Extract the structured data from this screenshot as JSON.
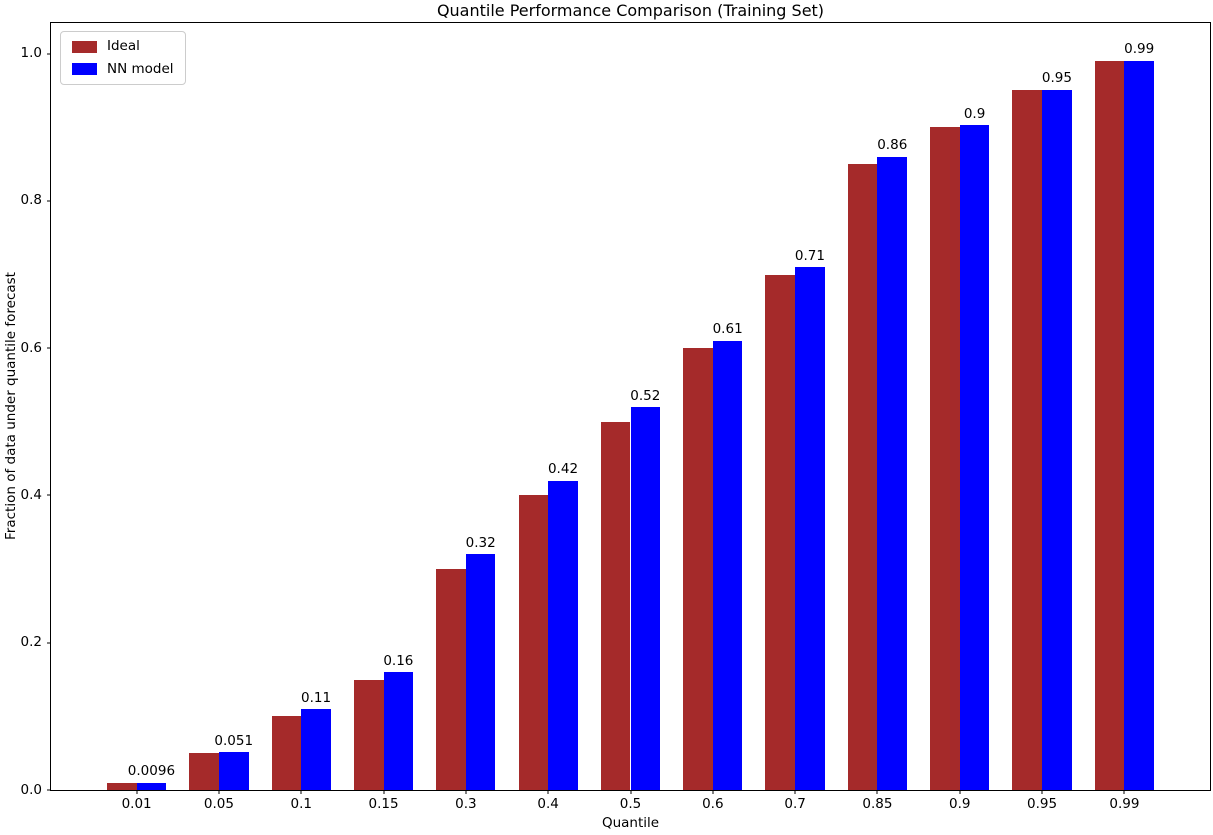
{
  "chart_data": {
    "type": "bar",
    "title": "Quantile Performance Comparison (Training Set)",
    "xlabel": "Quantile",
    "ylabel": "Fraction of data under quantile forecast",
    "categories": [
      "0.01",
      "0.05",
      "0.1",
      "0.15",
      "0.3",
      "0.4",
      "0.5",
      "0.6",
      "0.7",
      "0.85",
      "0.9",
      "0.95",
      "0.99"
    ],
    "series": [
      {
        "name": "Ideal",
        "color": "#A52A2A",
        "values": [
          0.01,
          0.05,
          0.1,
          0.15,
          0.3,
          0.4,
          0.5,
          0.6,
          0.7,
          0.85,
          0.9,
          0.95,
          0.99
        ]
      },
      {
        "name": "NN model",
        "color": "#0000FF",
        "values": [
          0.0096,
          0.051,
          0.11,
          0.16,
          0.32,
          0.42,
          0.52,
          0.61,
          0.71,
          0.86,
          0.903,
          0.951,
          0.99
        ]
      }
    ],
    "bar_labels": [
      "0.0096",
      "0.051",
      "0.11",
      "0.16",
      "0.32",
      "0.42",
      "0.52",
      "0.61",
      "0.71",
      "0.86",
      "0.9",
      "0.95",
      "0.99"
    ],
    "yticks": [
      "0.0",
      "0.2",
      "0.4",
      "0.6",
      "0.8",
      "1.0"
    ],
    "ylim": [
      0,
      1.0415
    ],
    "xlim": [
      -1.04,
      13.04
    ],
    "bar_width_units": 0.36,
    "grid": false,
    "legend_position": "upper left",
    "background": "#ffffff",
    "text_color": "#000000"
  }
}
